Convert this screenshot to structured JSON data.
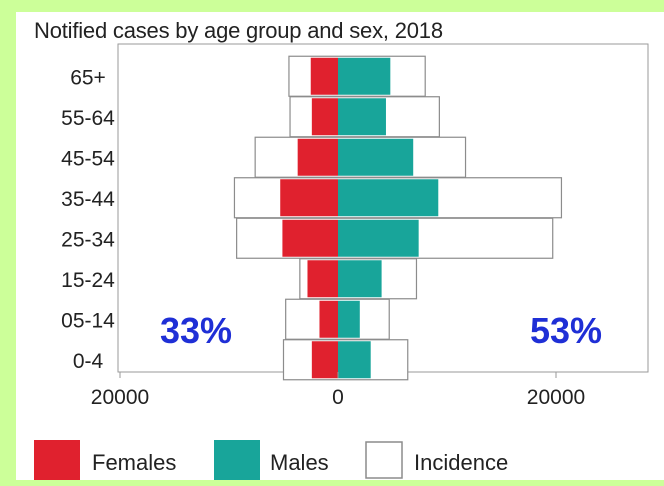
{
  "chart_data": {
    "type": "bar",
    "orientation": "horizontal-population-pyramid",
    "title": "Notified cases by age group and sex, 2018",
    "categories": [
      "65+",
      "55-64",
      "45-54",
      "35-44",
      "25-34",
      "15-24",
      "05-14",
      "0-4"
    ],
    "series": [
      {
        "name": "Females",
        "color": "#e0212e",
        "values": [
          2500,
          2400,
          3700,
          5300,
          5100,
          2800,
          1700,
          2400
        ]
      },
      {
        "name": "Males",
        "color": "#18a59a",
        "values": [
          4800,
          4400,
          6900,
          9200,
          7400,
          4000,
          2000,
          3000
        ]
      },
      {
        "name": "Incidence",
        "color": "#ffffff",
        "values_left": [
          4500,
          4400,
          7600,
          9500,
          9300,
          3500,
          4800,
          5000
        ],
        "values_right": [
          8000,
          9300,
          11700,
          20500,
          19700,
          7200,
          4700,
          6400
        ]
      }
    ],
    "x_tick_labels": [
      "20000",
      "0",
      "20000"
    ],
    "xlim": [
      -27000,
      27000
    ],
    "legend_position": "bottom",
    "annotations": {
      "left": "33%",
      "right": "53%"
    }
  }
}
